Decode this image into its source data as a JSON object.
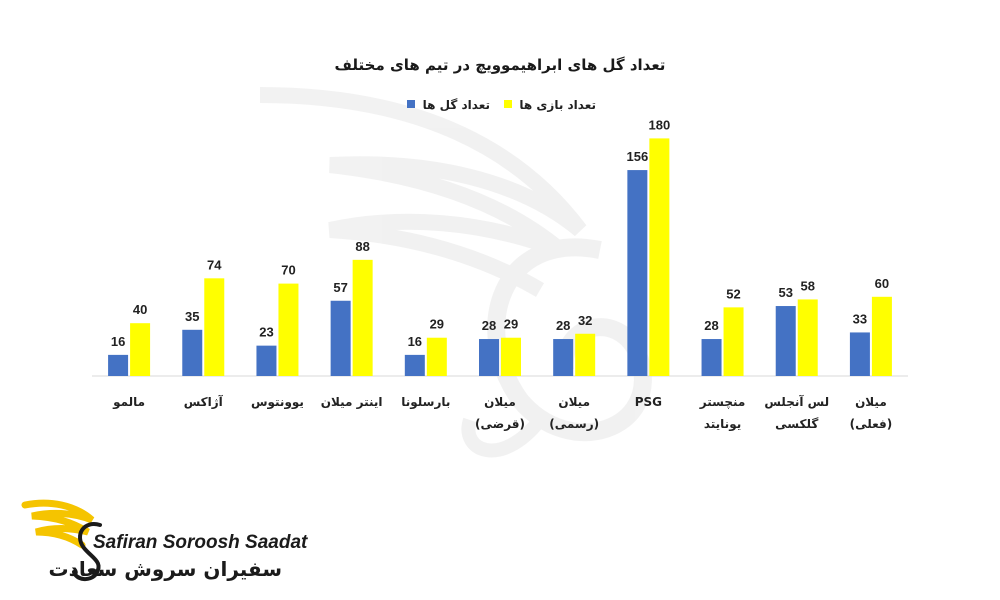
{
  "colors": {
    "goals": "#4472C4",
    "games": "#FFFF00",
    "axis": "#d9d9d9",
    "logo_wing": "#F5C400"
  },
  "logo": {
    "english": "Safiran Soroosh Saadat",
    "persian": "سفیران سروش سعادت",
    "icon": "winged-s-logo"
  },
  "chart_data": {
    "type": "bar",
    "title": "تعداد گل های ابراهیموویچ در تیم های مختلف",
    "legend_position": "top-center",
    "grid": false,
    "ylim": [
      0,
      200
    ],
    "categories": [
      [
        "مالمو"
      ],
      [
        "آژاکس"
      ],
      [
        "یوونتوس"
      ],
      [
        "اینتر میلان"
      ],
      [
        "بارسلونا"
      ],
      [
        "میلان",
        "(قرضی)"
      ],
      [
        "میلان",
        "(رسمی)"
      ],
      [
        "PSG"
      ],
      [
        "منچستر",
        "یونایتد"
      ],
      [
        "لس آنجلس",
        "گلکسی"
      ],
      [
        "میلان",
        "(فعلی)"
      ]
    ],
    "series": [
      {
        "name": "تعداد گل ها",
        "values": [
          16,
          35,
          23,
          57,
          16,
          28,
          28,
          156,
          28,
          53,
          33
        ]
      },
      {
        "name": "تعداد بازی ها",
        "values": [
          40,
          74,
          70,
          88,
          29,
          29,
          32,
          180,
          52,
          58,
          60
        ]
      }
    ]
  }
}
